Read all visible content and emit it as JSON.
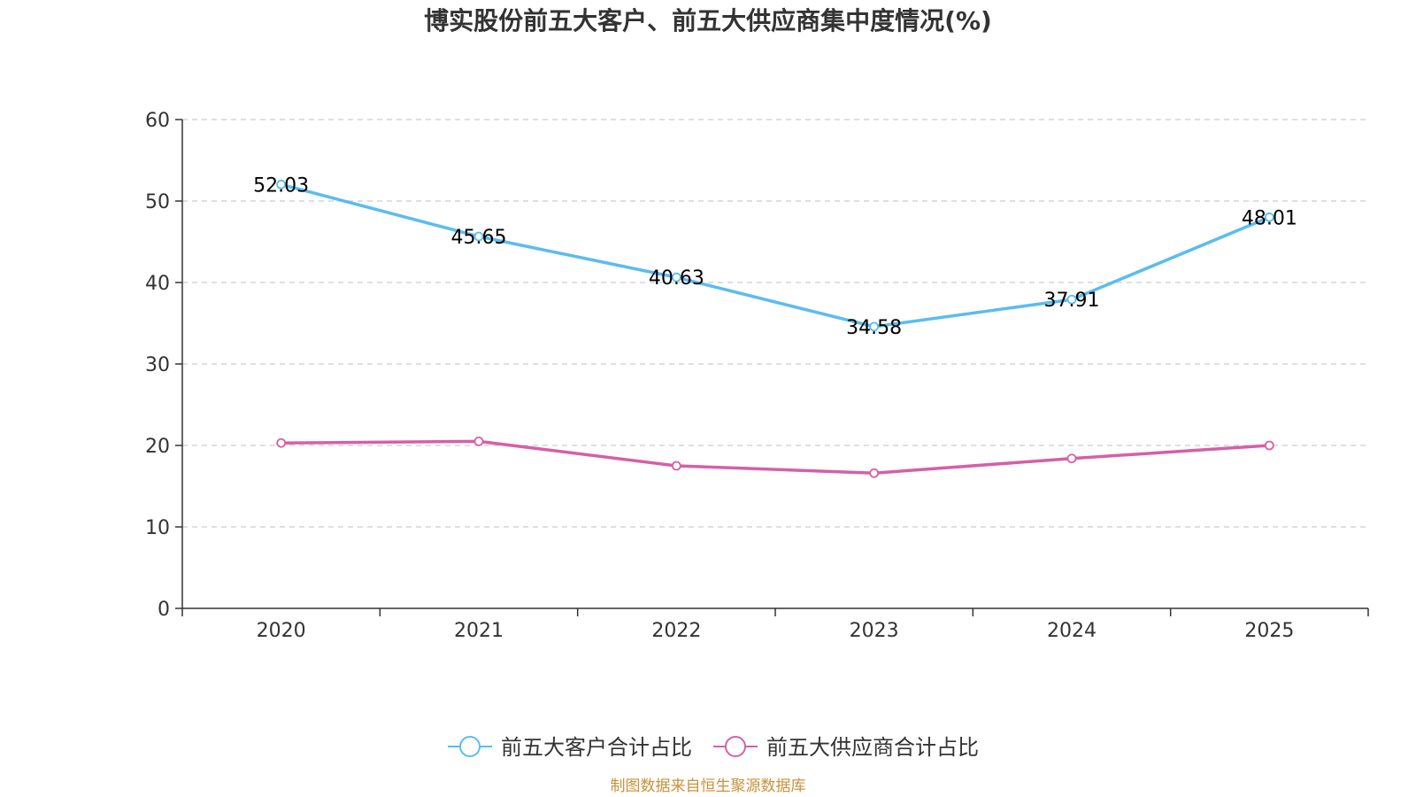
{
  "chart_data": {
    "type": "line",
    "title": "博实股份前五大客户、前五大供应商集中度情况(%)",
    "categories": [
      "2020",
      "2021",
      "2022",
      "2023",
      "2024",
      "2025"
    ],
    "ylim": [
      0,
      60
    ],
    "yticks": [
      0,
      10,
      20,
      30,
      40,
      50,
      60
    ],
    "grid": true,
    "legend_position": "bottom-center",
    "series": [
      {
        "name": "前五大客户合计占比",
        "color": "#5bbcf0",
        "values": [
          52.03,
          45.65,
          40.63,
          34.58,
          37.91,
          48.01
        ],
        "labels": [
          "52.03",
          "45.65",
          "40.63",
          "34.58",
          "37.91",
          "48.01"
        ],
        "show_labels": true
      },
      {
        "name": "前五大供应商合计占比",
        "color": "#d65fa8",
        "values": [
          20.3,
          20.5,
          17.5,
          16.6,
          18.4,
          20.0
        ],
        "show_labels": false
      }
    ]
  },
  "source": {
    "text": "制图数据来自恒生聚源数据库",
    "color": "#c8913a"
  }
}
